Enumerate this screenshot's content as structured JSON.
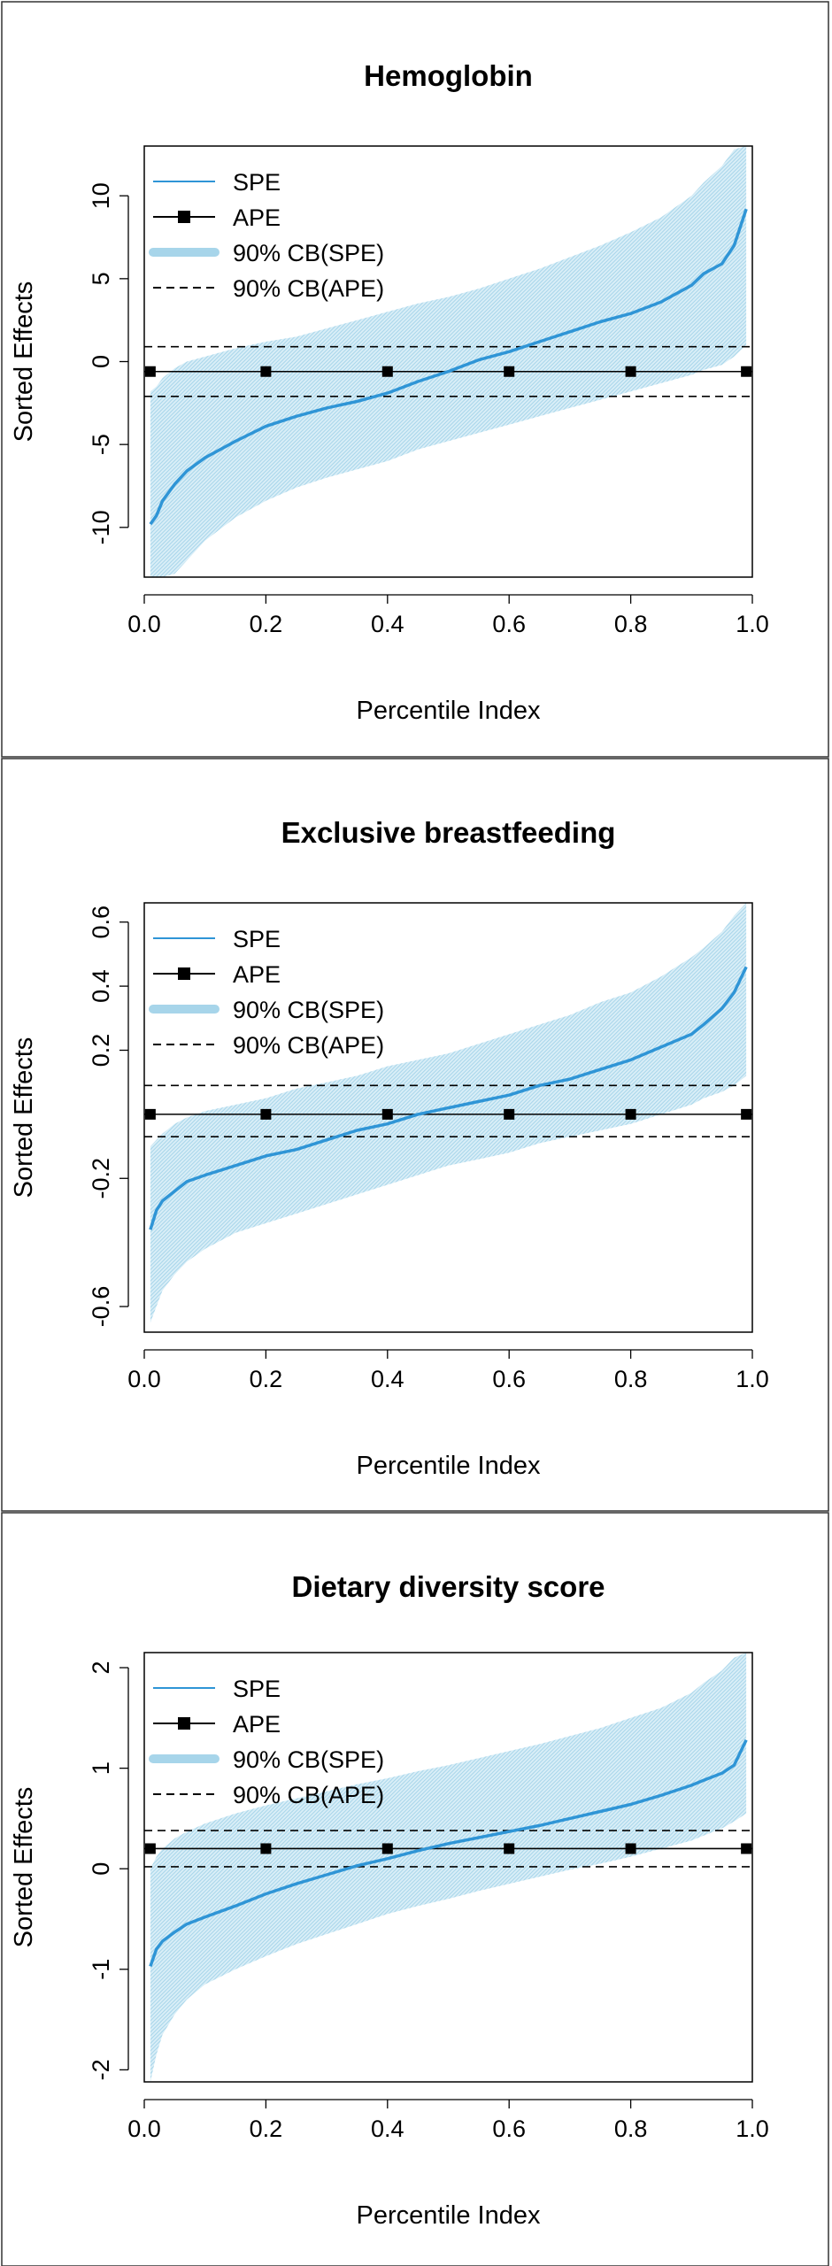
{
  "chart_data": [
    {
      "type": "line",
      "title": "Hemoglobin",
      "xlabel": "Percentile Index",
      "ylabel": "Sorted Effects",
      "xlim": [
        0.0,
        1.0
      ],
      "ylim": [
        -13,
        13
      ],
      "xticks": [
        "0.0",
        "0.2",
        "0.4",
        "0.6",
        "0.8",
        "1.0"
      ],
      "xtick_values": [
        0.0,
        0.2,
        0.4,
        0.6,
        0.8,
        1.0
      ],
      "yticks": [
        "-10",
        "-5",
        "0",
        "5",
        "10"
      ],
      "ytick_values": [
        -10,
        -5,
        0,
        5,
        10
      ],
      "legend": {
        "position": "top-left",
        "entries": [
          "SPE",
          "APE",
          "90% CB(SPE)",
          "90% CB(APE)"
        ]
      },
      "grid": false,
      "x": [
        0.01,
        0.02,
        0.03,
        0.05,
        0.07,
        0.1,
        0.15,
        0.2,
        0.25,
        0.3,
        0.35,
        0.4,
        0.45,
        0.5,
        0.55,
        0.6,
        0.65,
        0.7,
        0.75,
        0.8,
        0.85,
        0.9,
        0.92,
        0.95,
        0.97,
        0.99
      ],
      "series": [
        {
          "name": "SPE",
          "values": [
            -9.8,
            -9.3,
            -8.4,
            -7.4,
            -6.6,
            -5.8,
            -4.8,
            -3.9,
            -3.3,
            -2.8,
            -2.4,
            -1.9,
            -1.2,
            -0.6,
            0.1,
            0.6,
            1.2,
            1.8,
            2.4,
            2.9,
            3.6,
            4.6,
            5.3,
            5.9,
            7.0,
            9.2
          ]
        },
        {
          "name": "90% CB(SPE)",
          "lower": [
            -13,
            -13,
            -13,
            -12.8,
            -12,
            -10.8,
            -9.4,
            -8.4,
            -7.6,
            -7.0,
            -6.5,
            -6.0,
            -5.3,
            -4.8,
            -4.3,
            -3.8,
            -3.3,
            -2.8,
            -2.3,
            -1.8,
            -1.3,
            -0.8,
            -0.5,
            -0.2,
            0.3,
            1.0
          ],
          "upper": [
            -1.8,
            -1.5,
            -1.0,
            -0.4,
            0.0,
            0.3,
            0.8,
            1.2,
            1.5,
            2.0,
            2.5,
            3.0,
            3.5,
            3.9,
            4.4,
            5.0,
            5.6,
            6.3,
            7.0,
            7.8,
            8.7,
            10.0,
            10.8,
            11.8,
            12.8,
            13
          ]
        }
      ],
      "ape": {
        "name": "APE",
        "value": -0.6,
        "marker_x": [
          0.01,
          0.2,
          0.4,
          0.6,
          0.8,
          0.99
        ]
      },
      "ape_band": {
        "name": "90% CB(APE)",
        "lower": -2.1,
        "upper": 0.9
      }
    },
    {
      "type": "line",
      "title": "Exclusive breastfeeding",
      "xlabel": "Percentile Index",
      "ylabel": "Sorted Effects",
      "xlim": [
        0.0,
        1.0
      ],
      "ylim": [
        -0.68,
        0.66
      ],
      "xticks": [
        "0.0",
        "0.2",
        "0.4",
        "0.6",
        "0.8",
        "1.0"
      ],
      "xtick_values": [
        0.0,
        0.2,
        0.4,
        0.6,
        0.8,
        1.0
      ],
      "yticks": [
        "-0.6",
        "-0.2",
        "0.2",
        "0.4",
        "0.6"
      ],
      "ytick_values": [
        -0.6,
        -0.2,
        0.2,
        0.4,
        0.6
      ],
      "legend": {
        "position": "top-left",
        "entries": [
          "SPE",
          "APE",
          "90% CB(SPE)",
          "90% CB(APE)"
        ]
      },
      "grid": false,
      "x": [
        0.01,
        0.02,
        0.03,
        0.05,
        0.07,
        0.1,
        0.15,
        0.2,
        0.25,
        0.3,
        0.35,
        0.4,
        0.45,
        0.5,
        0.55,
        0.6,
        0.65,
        0.7,
        0.75,
        0.8,
        0.85,
        0.9,
        0.92,
        0.95,
        0.97,
        0.99
      ],
      "series": [
        {
          "name": "SPE",
          "values": [
            -0.36,
            -0.3,
            -0.27,
            -0.24,
            -0.21,
            -0.19,
            -0.16,
            -0.13,
            -0.11,
            -0.08,
            -0.05,
            -0.03,
            0.0,
            0.02,
            0.04,
            0.06,
            0.09,
            0.11,
            0.14,
            0.17,
            0.21,
            0.25,
            0.28,
            0.33,
            0.38,
            0.46
          ]
        },
        {
          "name": "90% CB(SPE)",
          "lower": [
            -0.65,
            -0.6,
            -0.55,
            -0.5,
            -0.46,
            -0.42,
            -0.37,
            -0.34,
            -0.31,
            -0.28,
            -0.25,
            -0.22,
            -0.19,
            -0.16,
            -0.14,
            -0.12,
            -0.09,
            -0.07,
            -0.05,
            -0.03,
            0.0,
            0.03,
            0.05,
            0.07,
            0.09,
            0.12
          ],
          "upper": [
            -0.1,
            -0.08,
            -0.06,
            -0.03,
            -0.01,
            0.01,
            0.03,
            0.05,
            0.08,
            0.1,
            0.12,
            0.15,
            0.17,
            0.19,
            0.22,
            0.25,
            0.28,
            0.31,
            0.35,
            0.38,
            0.43,
            0.49,
            0.52,
            0.57,
            0.62,
            0.66
          ]
        }
      ],
      "ape": {
        "name": "APE",
        "value": 0.0,
        "marker_x": [
          0.01,
          0.2,
          0.4,
          0.6,
          0.8,
          0.99
        ]
      },
      "ape_band": {
        "name": "90% CB(APE)",
        "lower": -0.07,
        "upper": 0.09
      }
    },
    {
      "type": "line",
      "title": "Dietary diversity score",
      "xlabel": "Percentile Index",
      "ylabel": "Sorted Effects",
      "xlim": [
        0.0,
        1.0
      ],
      "ylim": [
        -2.12,
        2.15
      ],
      "xticks": [
        "0.0",
        "0.2",
        "0.4",
        "0.6",
        "0.8",
        "1.0"
      ],
      "xtick_values": [
        0.0,
        0.2,
        0.4,
        0.6,
        0.8,
        1.0
      ],
      "yticks": [
        "-2",
        "-1",
        "0",
        "1",
        "2"
      ],
      "ytick_values": [
        -2,
        -1,
        0,
        1,
        2
      ],
      "legend": {
        "position": "top-left",
        "entries": [
          "SPE",
          "APE",
          "90% CB(SPE)",
          "90% CB(APE)"
        ]
      },
      "grid": false,
      "x": [
        0.01,
        0.02,
        0.03,
        0.05,
        0.07,
        0.1,
        0.15,
        0.2,
        0.25,
        0.3,
        0.35,
        0.4,
        0.45,
        0.5,
        0.55,
        0.6,
        0.65,
        0.7,
        0.75,
        0.8,
        0.85,
        0.9,
        0.92,
        0.95,
        0.97,
        0.99
      ],
      "series": [
        {
          "name": "SPE",
          "values": [
            -0.97,
            -0.8,
            -0.72,
            -0.63,
            -0.55,
            -0.48,
            -0.37,
            -0.25,
            -0.15,
            -0.06,
            0.03,
            0.1,
            0.18,
            0.25,
            0.31,
            0.37,
            0.43,
            0.5,
            0.57,
            0.64,
            0.73,
            0.83,
            0.88,
            0.95,
            1.03,
            1.28
          ]
        },
        {
          "name": "90% CB(SPE)",
          "lower": [
            -2.12,
            -1.85,
            -1.65,
            -1.45,
            -1.3,
            -1.15,
            -1.0,
            -0.87,
            -0.75,
            -0.65,
            -0.55,
            -0.45,
            -0.37,
            -0.3,
            -0.22,
            -0.15,
            -0.08,
            -0.01,
            0.05,
            0.12,
            0.2,
            0.28,
            0.33,
            0.4,
            0.47,
            0.55
          ],
          "upper": [
            0.0,
            0.12,
            0.2,
            0.3,
            0.37,
            0.45,
            0.55,
            0.63,
            0.7,
            0.77,
            0.84,
            0.9,
            0.97,
            1.03,
            1.1,
            1.17,
            1.24,
            1.32,
            1.4,
            1.5,
            1.6,
            1.75,
            1.85,
            1.97,
            2.1,
            2.15
          ]
        }
      ],
      "ape": {
        "name": "APE",
        "value": 0.2,
        "marker_x": [
          0.01,
          0.2,
          0.4,
          0.6,
          0.8,
          0.99
        ]
      },
      "ape_band": {
        "name": "90% CB(APE)",
        "lower": 0.02,
        "upper": 0.38
      }
    }
  ],
  "colors": {
    "spe_line": "#2f95d6",
    "spe_band": "#a7d5ea",
    "ape": "#000000",
    "frame": "#555555"
  }
}
